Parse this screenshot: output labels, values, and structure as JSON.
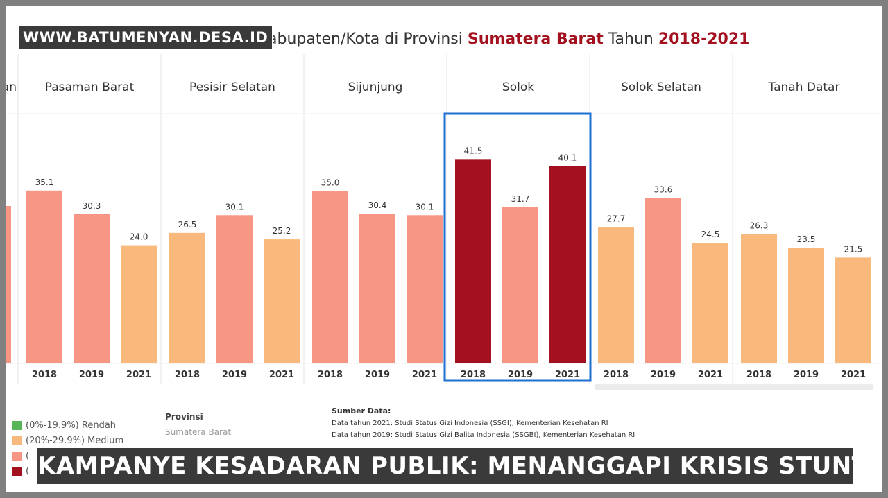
{
  "title_parts": [
    {
      "text": "abupaten/Kota di Provinsi ",
      "color": "#333333"
    },
    {
      "text": "Sumatera Barat",
      "color": "#a3101e"
    },
    {
      "text": " Tahun ",
      "color": "#333333"
    },
    {
      "text": "2018-2021",
      "color": "#a3101e"
    }
  ],
  "watermark": "WWW.BATUMENYAN.DESA.ID",
  "banner": "KAMPANYE KESADARAN PUBLIK: MENANGGAPI KRISIS STUNTING",
  "legend": [
    {
      "label": "(0%-19.9%) Rendah",
      "color": "#59b55a"
    },
    {
      "label": "(20%-29.9%) Medium",
      "color": "#f9b97c"
    },
    {
      "label": "(",
      "color": "#f79685"
    },
    {
      "label": "(",
      "color": "#a3101e"
    }
  ],
  "province": {
    "title": "Provinsi",
    "value": "Sumatera Barat"
  },
  "source": {
    "title": "Sumber Data:",
    "lines": [
      "Data tahun 2021: Studi Status Gizi Indonesia (SSGI), Kementerian Kesehatan RI",
      "Data tahun 2019: Studi Status Gizi Balita Indonesia (SSGBI), Kementerian Kesehatan RI"
    ]
  },
  "colors": {
    "medium": "#f9b97c",
    "tinggi": "#f79685",
    "sangat_tinggi": "#a3101e",
    "highlight": "#1f6fd1"
  },
  "chart_data": {
    "type": "bar",
    "ylim": [
      0,
      50
    ],
    "highlighted_group": "Solok",
    "groups": [
      {
        "name": "an",
        "years": [],
        "values": [],
        "levels": []
      },
      {
        "name": "Pasaman Barat",
        "years": [
          "2018",
          "2019",
          "2021"
        ],
        "values": [
          35.1,
          30.3,
          24.0
        ],
        "levels": [
          "tinggi",
          "tinggi",
          "medium"
        ]
      },
      {
        "name": "Pesisir Selatan",
        "years": [
          "2018",
          "2019",
          "2021"
        ],
        "values": [
          26.5,
          30.1,
          25.2
        ],
        "levels": [
          "medium",
          "tinggi",
          "medium"
        ]
      },
      {
        "name": "Sijunjung",
        "years": [
          "2018",
          "2019",
          "2021"
        ],
        "values": [
          35.0,
          30.4,
          30.1
        ],
        "levels": [
          "tinggi",
          "tinggi",
          "tinggi"
        ]
      },
      {
        "name": "Solok",
        "years": [
          "2018",
          "2019",
          "2021"
        ],
        "values": [
          41.5,
          31.7,
          40.1
        ],
        "levels": [
          "sangat_tinggi",
          "tinggi",
          "sangat_tinggi"
        ]
      },
      {
        "name": "Solok Selatan",
        "years": [
          "2018",
          "2019",
          "2021"
        ],
        "values": [
          27.7,
          33.6,
          24.5
        ],
        "levels": [
          "medium",
          "tinggi",
          "medium"
        ]
      },
      {
        "name": "Tanah Datar",
        "years": [
          "2018",
          "2019",
          "2021"
        ],
        "values": [
          26.3,
          23.5,
          21.5
        ],
        "levels": [
          "medium",
          "medium",
          "medium"
        ]
      }
    ]
  }
}
